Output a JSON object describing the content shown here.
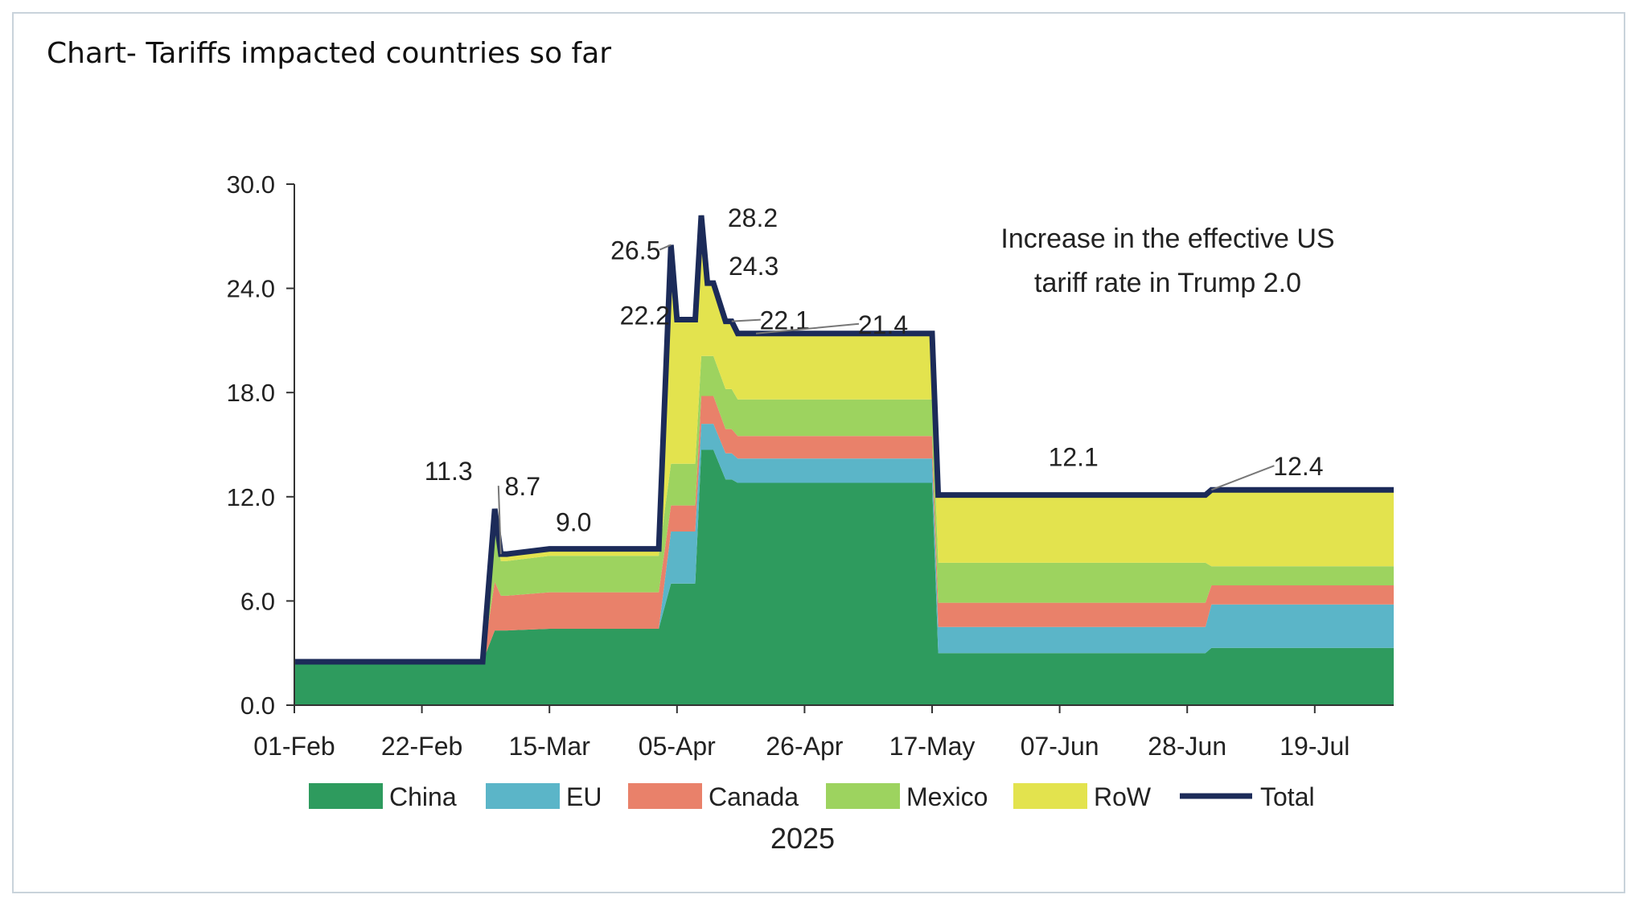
{
  "page": {
    "title": "Chart- Tariffs impacted countries so far"
  },
  "chart_data": {
    "type": "area",
    "stacked": true,
    "subtitle": "Increase in the effective US tariff rate in Trump 2.0",
    "subtitle_lines": [
      "Increase in the effective US",
      "tariff rate in Trump 2.0"
    ],
    "xlabel": "2025",
    "ylabel": "",
    "ylim": [
      0,
      30
    ],
    "yticks": [
      "0.0",
      "6.0",
      "12.0",
      "18.0",
      "24.0",
      "30.0"
    ],
    "x_start": "01-Feb",
    "x_end": "01-Aug",
    "xticks": [
      {
        "label": "01-Feb",
        "day": 0
      },
      {
        "label": "22-Feb",
        "day": 21
      },
      {
        "label": "15-Mar",
        "day": 42
      },
      {
        "label": "05-Apr",
        "day": 63
      },
      {
        "label": "26-Apr",
        "day": 84
      },
      {
        "label": "17-May",
        "day": 105
      },
      {
        "label": "07-Jun",
        "day": 126
      },
      {
        "label": "28-Jun",
        "day": 147
      },
      {
        "label": "19-Jul",
        "day": 168
      }
    ],
    "x_days": [
      0,
      31,
      33,
      34,
      35,
      42,
      60,
      62,
      63,
      66,
      67,
      68,
      69,
      71,
      72,
      73,
      76,
      105,
      106,
      150,
      151,
      181
    ],
    "series": [
      {
        "name": "China",
        "color": "#2e9b5e",
        "values": [
          2.5,
          2.5,
          4.3,
          4.3,
          4.3,
          4.4,
          4.4,
          7.0,
          7.0,
          7.0,
          14.7,
          14.7,
          14.7,
          13.0,
          13.0,
          12.8,
          12.8,
          12.8,
          3.0,
          3.0,
          3.3,
          3.3
        ]
      },
      {
        "name": "EU",
        "color": "#5bb5c8",
        "values": [
          0.0,
          0.0,
          0.0,
          0.0,
          0.0,
          0.0,
          0.0,
          3.0,
          3.0,
          3.0,
          1.5,
          1.5,
          1.5,
          1.5,
          1.5,
          1.4,
          1.4,
          1.4,
          1.5,
          1.5,
          2.5,
          2.5
        ]
      },
      {
        "name": "Canada",
        "color": "#e9816a",
        "values": [
          0.0,
          0.0,
          2.8,
          2.0,
          2.0,
          2.1,
          2.1,
          1.5,
          1.5,
          1.5,
          1.6,
          1.6,
          1.6,
          1.4,
          1.4,
          1.3,
          1.3,
          1.3,
          1.4,
          1.4,
          1.1,
          1.1
        ]
      },
      {
        "name": "Mexico",
        "color": "#9dd35f",
        "values": [
          0.0,
          0.0,
          3.5,
          2.0,
          2.0,
          2.1,
          2.1,
          2.4,
          2.4,
          2.4,
          2.3,
          2.3,
          2.3,
          2.3,
          2.3,
          2.1,
          2.1,
          2.1,
          2.3,
          2.3,
          1.1,
          1.1
        ]
      },
      {
        "name": "RoW",
        "color": "#e3e34e",
        "values": [
          0.0,
          0.0,
          0.7,
          0.4,
          0.4,
          0.4,
          0.4,
          12.6,
          8.3,
          8.3,
          8.2,
          4.2,
          4.2,
          3.9,
          3.9,
          3.8,
          3.8,
          3.8,
          3.9,
          3.9,
          4.4,
          4.4
        ]
      },
      {
        "name": "Total",
        "color": "#1c2b59",
        "line": true,
        "values": [
          2.5,
          2.5,
          11.3,
          8.7,
          8.7,
          9.0,
          9.0,
          26.5,
          22.2,
          22.2,
          28.2,
          24.3,
          24.3,
          22.1,
          22.1,
          21.4,
          21.4,
          21.4,
          12.1,
          12.1,
          12.4,
          12.4
        ]
      }
    ],
    "annotations": [
      {
        "text": "11.3",
        "day": 32,
        "value": 11.3
      },
      {
        "text": "8.7",
        "day": 34,
        "value": 8.7
      },
      {
        "text": "9.0",
        "day": 42,
        "value": 9.0
      },
      {
        "text": "26.5",
        "day": 62,
        "value": 26.5
      },
      {
        "text": "22.2",
        "day": 63,
        "value": 22.2
      },
      {
        "text": "28.2",
        "day": 67,
        "value": 28.2
      },
      {
        "text": "24.3",
        "day": 69,
        "value": 24.3
      },
      {
        "text": "22.1",
        "day": 72,
        "value": 22.1
      },
      {
        "text": "21.4",
        "day": 76,
        "value": 21.4
      },
      {
        "text": "12.1",
        "day": 128,
        "value": 12.1
      },
      {
        "text": "12.4",
        "day": 151,
        "value": 12.4
      }
    ],
    "legend_position": "bottom"
  }
}
